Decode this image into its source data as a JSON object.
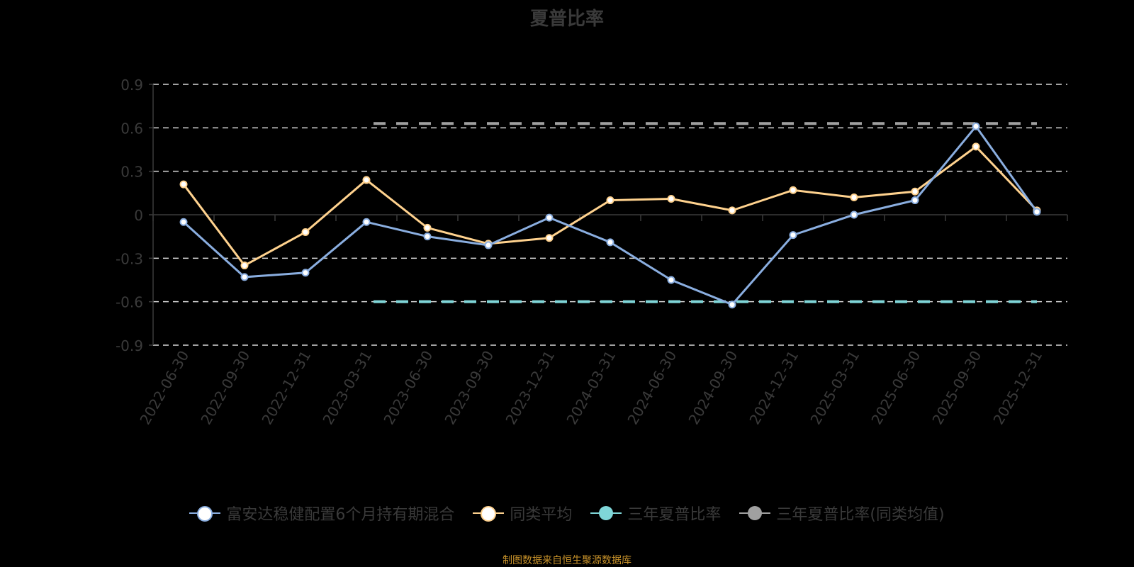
{
  "title": "夏普比率",
  "source_note": "制图数据来自恒生聚源数据库",
  "colors": {
    "fund": "#8aaee0",
    "peer": "#ffd28e",
    "three_year": "#7fd6d8",
    "three_year_peer": "#a0a0a0",
    "axis_text": "#3a3a3a",
    "grid": "#d8d8d8"
  },
  "legend": [
    {
      "label": "富安达稳健配置6个月持有期混合",
      "color": "#8aaee0",
      "style": "hollow"
    },
    {
      "label": "同类平均",
      "color": "#ffd28e",
      "style": "hollow"
    },
    {
      "label": "三年夏普比率",
      "color": "#7fd6d8",
      "style": "filled"
    },
    {
      "label": "三年夏普比率(同类均值)",
      "color": "#a0a0a0",
      "style": "filled"
    }
  ],
  "chart_data": {
    "type": "line",
    "title": "夏普比率",
    "xlabel": "",
    "ylabel": "",
    "ylim": [
      -0.9,
      0.9
    ],
    "yticks": [
      0.9,
      0.6,
      0.3,
      0,
      -0.3,
      -0.6,
      -0.9
    ],
    "ytick_labels": [
      "0.9",
      "0.6",
      "0.3",
      "0",
      "-0.3",
      "-0.6",
      "-0.9"
    ],
    "grid": true,
    "legend_position": "bottom",
    "categories": [
      "2022-06-30",
      "2022-09-30",
      "2022-12-31",
      "2023-03-31",
      "2023-06-30",
      "2023-09-30",
      "2023-12-31",
      "2024-03-31",
      "2024-06-30",
      "2024-09-30",
      "2024-12-31",
      "2025-03-31",
      "2025-06-30",
      "2025-09-30",
      "2025-12-31"
    ],
    "series": [
      {
        "name": "富安达稳健配置6个月持有期混合",
        "values": [
          -0.05,
          -0.43,
          -0.4,
          -0.05,
          -0.15,
          -0.21,
          -0.02,
          -0.19,
          -0.45,
          -0.62,
          -0.14,
          0.0,
          0.1,
          0.61,
          0.02
        ]
      },
      {
        "name": "同类平均",
        "values": [
          0.21,
          -0.35,
          -0.12,
          0.24,
          -0.09,
          -0.2,
          -0.16,
          0.1,
          0.11,
          0.03,
          0.17,
          0.12,
          0.16,
          0.47,
          0.03
        ]
      },
      {
        "name": "三年夏普比率",
        "values": [
          null,
          null,
          null,
          -0.6,
          -0.6,
          -0.6,
          -0.6,
          -0.6,
          -0.6,
          -0.6,
          -0.6,
          -0.6,
          -0.6,
          -0.6,
          -0.6
        ]
      },
      {
        "name": "三年夏普比率(同类均值)",
        "values": [
          null,
          null,
          null,
          0.63,
          0.63,
          0.63,
          0.63,
          0.63,
          0.63,
          0.63,
          0.63,
          0.63,
          0.63,
          0.63,
          0.63
        ]
      }
    ]
  }
}
